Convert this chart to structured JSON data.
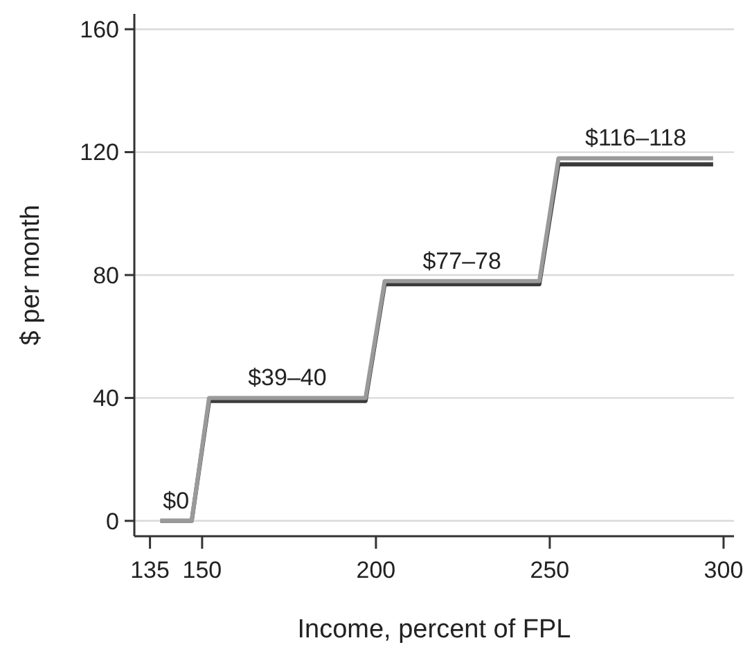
{
  "chart_data": {
    "type": "line",
    "xlabel": "Income, percent of FPL",
    "ylabel": "$ per month",
    "xlim": [
      130.5,
      303
    ],
    "ylim": [
      -5,
      165
    ],
    "xticks": [
      135,
      150,
      200,
      250,
      300
    ],
    "yticks": [
      0,
      40,
      80,
      120,
      160
    ],
    "grid": "y",
    "marker": "none",
    "line_style": "solid",
    "series": [
      {
        "color": "#3a3a3a",
        "x": [
          138,
          147,
          152,
          197,
          202.5,
          247,
          252.5,
          297
        ],
        "values": [
          0,
          0,
          39,
          39,
          77,
          77,
          116,
          116
        ]
      },
      {
        "color": "#9a9a9a",
        "x": [
          138,
          147,
          152,
          197,
          202.5,
          247,
          252.5,
          297
        ],
        "values": [
          0,
          0,
          40,
          40,
          78,
          78,
          118,
          118
        ]
      }
    ],
    "annotations": [
      "$0",
      "$39–40",
      "$77–78",
      "$116–118"
    ]
  }
}
